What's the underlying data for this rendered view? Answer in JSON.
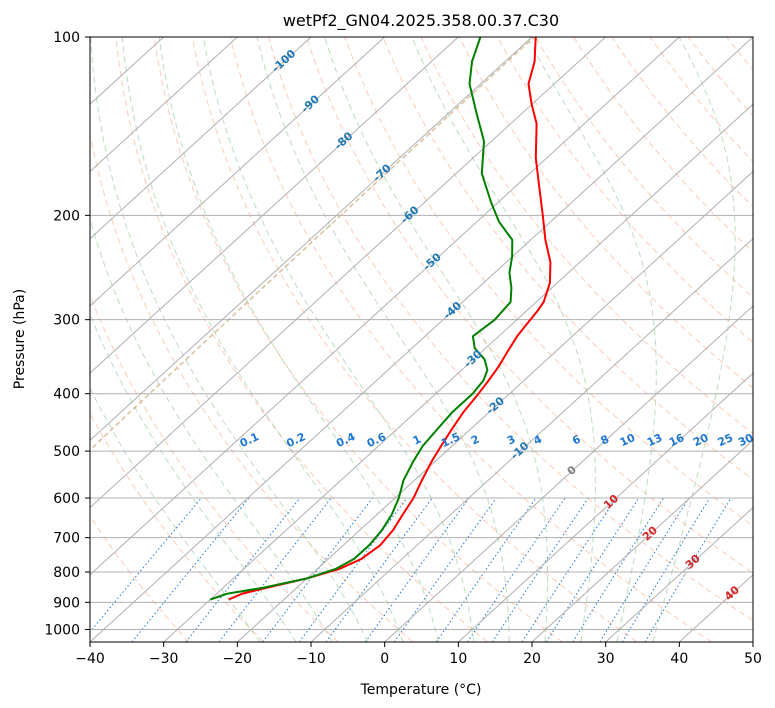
{
  "chart_data": {
    "type": "line",
    "subtype": "skew-t log-p diagram",
    "title": "wetPf2_GN04.2025.358.00.37.C30",
    "xlabel": "Temperature (°C)",
    "ylabel": "Pressure (hPa)",
    "xlim": [
      -40,
      50
    ],
    "ylim": [
      1050,
      100
    ],
    "x_ticks": [
      -40,
      -30,
      -20,
      -10,
      0,
      10,
      20,
      30,
      40,
      50
    ],
    "x_tick_labels": [
      "−40",
      "−30",
      "−20",
      "−10",
      "0",
      "10",
      "20",
      "30",
      "40",
      "50"
    ],
    "y_ticks": [
      100,
      200,
      300,
      400,
      500,
      600,
      700,
      800,
      900,
      1000
    ],
    "y_tick_labels": [
      "100",
      "200",
      "300",
      "400",
      "500",
      "600",
      "700",
      "800",
      "900",
      "1000"
    ],
    "grid": true,
    "series": [
      {
        "name": "Temperature",
        "color": "#ff0000",
        "points": [
          {
            "p": 890,
            "t": -27.5
          },
          {
            "p": 870,
            "t": -26.5
          },
          {
            "p": 850,
            "t": -24.0
          },
          {
            "p": 820,
            "t": -20.0
          },
          {
            "p": 790,
            "t": -17.0
          },
          {
            "p": 760,
            "t": -15.5
          },
          {
            "p": 720,
            "t": -15.0
          },
          {
            "p": 680,
            "t": -15.5
          },
          {
            "p": 640,
            "t": -16.5
          },
          {
            "p": 600,
            "t": -17.5
          },
          {
            "p": 560,
            "t": -19.0
          },
          {
            "p": 520,
            "t": -20.5
          },
          {
            "p": 490,
            "t": -21.5
          },
          {
            "p": 460,
            "t": -22.5
          },
          {
            "p": 430,
            "t": -23.5
          },
          {
            "p": 400,
            "t": -24.2
          },
          {
            "p": 380,
            "t": -24.8
          },
          {
            "p": 360,
            "t": -25.5
          },
          {
            "p": 340,
            "t": -26.5
          },
          {
            "p": 320,
            "t": -27.5
          },
          {
            "p": 305,
            "t": -28.0
          },
          {
            "p": 290,
            "t": -28.5
          },
          {
            "p": 280,
            "t": -29.0
          },
          {
            "p": 260,
            "t": -31.0
          },
          {
            "p": 240,
            "t": -34.0
          },
          {
            "p": 220,
            "t": -38.0
          },
          {
            "p": 200,
            "t": -42.0
          },
          {
            "p": 180,
            "t": -46.5
          },
          {
            "p": 160,
            "t": -51.5
          },
          {
            "p": 140,
            "t": -56.5
          },
          {
            "p": 130,
            "t": -60.0
          },
          {
            "p": 120,
            "t": -63.5
          },
          {
            "p": 110,
            "t": -66.0
          },
          {
            "p": 100,
            "t": -69.5
          }
        ]
      },
      {
        "name": "Dewpoint",
        "color": "#008000",
        "points": [
          {
            "p": 890,
            "t": -30.0
          },
          {
            "p": 870,
            "t": -28.5
          },
          {
            "p": 850,
            "t": -24.5
          },
          {
            "p": 820,
            "t": -20.0
          },
          {
            "p": 790,
            "t": -17.5
          },
          {
            "p": 760,
            "t": -16.5
          },
          {
            "p": 720,
            "t": -16.5
          },
          {
            "p": 680,
            "t": -17.0
          },
          {
            "p": 640,
            "t": -18.0
          },
          {
            "p": 600,
            "t": -19.5
          },
          {
            "p": 560,
            "t": -21.5
          },
          {
            "p": 520,
            "t": -23.0
          },
          {
            "p": 490,
            "t": -24.0
          },
          {
            "p": 460,
            "t": -24.5
          },
          {
            "p": 430,
            "t": -25.0
          },
          {
            "p": 400,
            "t": -25.0
          },
          {
            "p": 380,
            "t": -25.5
          },
          {
            "p": 365,
            "t": -26.5
          },
          {
            "p": 350,
            "t": -28.5
          },
          {
            "p": 335,
            "t": -31.5
          },
          {
            "p": 320,
            "t": -33.5
          },
          {
            "p": 300,
            "t": -33.0
          },
          {
            "p": 280,
            "t": -33.5
          },
          {
            "p": 265,
            "t": -35.5
          },
          {
            "p": 250,
            "t": -38.0
          },
          {
            "p": 235,
            "t": -40.0
          },
          {
            "p": 220,
            "t": -42.5
          },
          {
            "p": 205,
            "t": -47.0
          },
          {
            "p": 190,
            "t": -51.0
          },
          {
            "p": 170,
            "t": -56.5
          },
          {
            "p": 150,
            "t": -61.0
          },
          {
            "p": 135,
            "t": -66.0
          },
          {
            "p": 120,
            "t": -71.5
          },
          {
            "p": 110,
            "t": -74.5
          },
          {
            "p": 100,
            "t": -77.0
          }
        ]
      }
    ],
    "background_lines": {
      "isotherms_deg_c": [
        -130,
        -120,
        -110,
        -100,
        -90,
        -80,
        -70,
        -60,
        -50,
        -40,
        -30,
        -20,
        -10,
        0,
        10,
        20,
        30,
        40,
        50
      ],
      "dry_adiabats_deg_c": [
        -30,
        -20,
        -10,
        0,
        10,
        20,
        30,
        40,
        50,
        60,
        70,
        80,
        90,
        100,
        110,
        120,
        130,
        140,
        150,
        160,
        170,
        180,
        190,
        200
      ],
      "moist_adiabats_deg_c": [
        -20,
        -15,
        -10,
        -5,
        0,
        5,
        10,
        15,
        20,
        25,
        30,
        35
      ],
      "mixing_ratios_g_per_kg": [
        0.1,
        0.2,
        0.4,
        0.6,
        1,
        1.5,
        2,
        3,
        4,
        6,
        8,
        10,
        13,
        16,
        20,
        25,
        30,
        36
      ]
    },
    "annotations": {
      "isotherm_labels_blue": [
        "-100",
        "-90",
        "-80",
        "-70",
        "-60",
        "-50",
        "-40",
        "-30",
        "-20",
        "-10"
      ],
      "isotherm_label_gray": "0",
      "isotherm_labels_red": [
        "10",
        "20",
        "30",
        "40"
      ],
      "mixing_ratio_labels": [
        "0.1",
        "0.2",
        "0.4",
        "0.6",
        "1",
        "1.5",
        "2",
        "3",
        "4",
        "6",
        "8",
        "10",
        "13",
        "16",
        "20",
        "25",
        "30",
        "36"
      ],
      "mixing_ratio_label_pressure_hpa": 480
    },
    "colors": {
      "temperature": "#ff0000",
      "dewpoint": "#008000",
      "isotherm_grid": "#b0b0b0",
      "dry_adiabat": "#ffa07a",
      "moist_adiabat": "#90c890",
      "mixing_ratio": "#1f77d4",
      "label_blue": "#1f77b4",
      "label_red": "#d62728",
      "label_gray": "#808080",
      "reference_curve": "#d2b48c"
    }
  }
}
